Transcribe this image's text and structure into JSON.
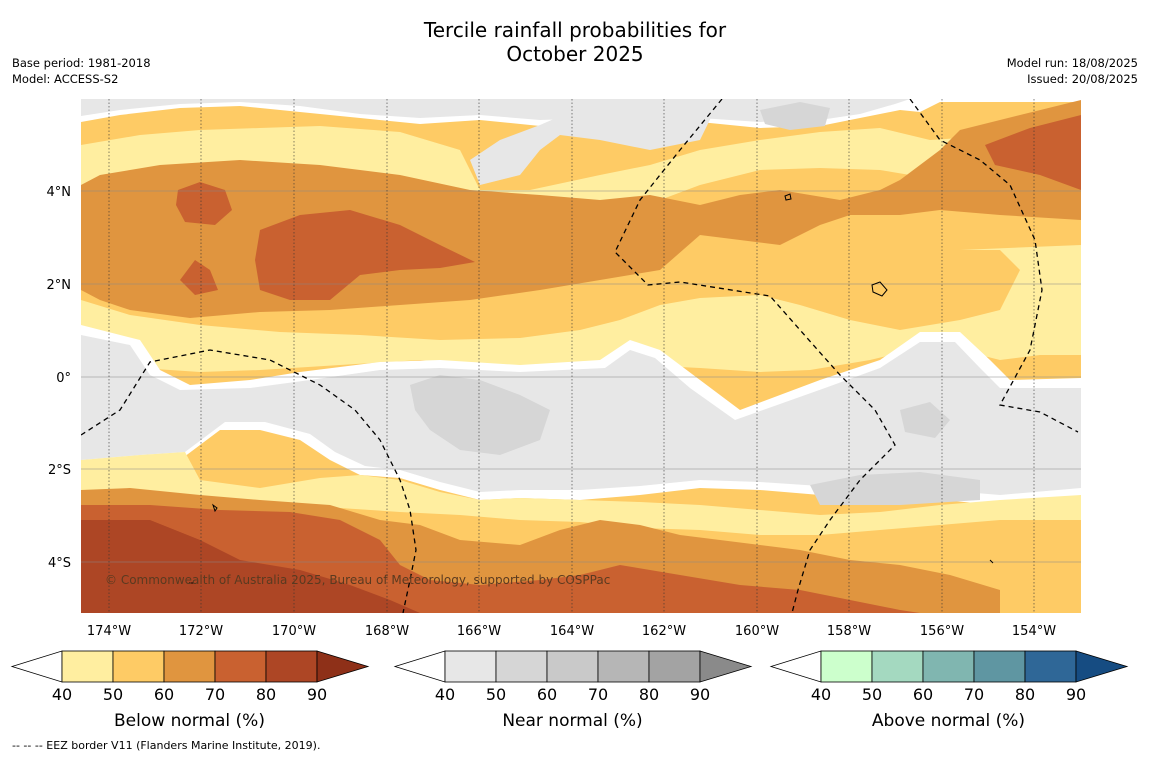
{
  "title_line1": "Tercile rainfall probabilities for",
  "title_line2": "October 2025",
  "meta": {
    "base_period": "Base period: 1981-2018",
    "model": "Model: ACCESS-S2",
    "model_run": "Model run: 18/08/2025",
    "issued": "Issued: 20/08/2025"
  },
  "map": {
    "lat_ticks": [
      "4°N",
      "2°N",
      "0°",
      "2°S",
      "4°S"
    ],
    "lon_ticks": [
      "174°W",
      "172°W",
      "170°W",
      "168°W",
      "166°W",
      "164°W",
      "162°W",
      "160°W",
      "158°W",
      "156°W",
      "154°W"
    ],
    "copyright": "© Commonwealth of Australia 2025, Bureau of Meteorology, supported by COSPPac"
  },
  "colorbars": [
    {
      "title": "Below normal (%)",
      "ticks": [
        "40",
        "50",
        "60",
        "70",
        "80",
        "90"
      ],
      "colors": [
        "#ffeea0",
        "#fecb65",
        "#e0953f",
        "#c96130",
        "#ad4625",
        "#8e3018"
      ]
    },
    {
      "title": "Near normal (%)",
      "ticks": [
        "40",
        "50",
        "60",
        "70",
        "80",
        "90"
      ],
      "colors": [
        "#e7e7e7",
        "#d6d6d6",
        "#c9c9c9",
        "#b6b6b6",
        "#a3a3a3",
        "#8a8a8a"
      ]
    },
    {
      "title": "Above normal (%)",
      "ticks": [
        "40",
        "50",
        "60",
        "70",
        "80",
        "90"
      ],
      "colors": [
        "#ccffcc",
        "#a4d9c0",
        "#80b6b0",
        "#5f96a2",
        "#2f6797",
        "#164c82"
      ]
    }
  ],
  "footnote": "--  --  -- EEZ border V11 (Flanders Marine Institute, 2019)."
}
